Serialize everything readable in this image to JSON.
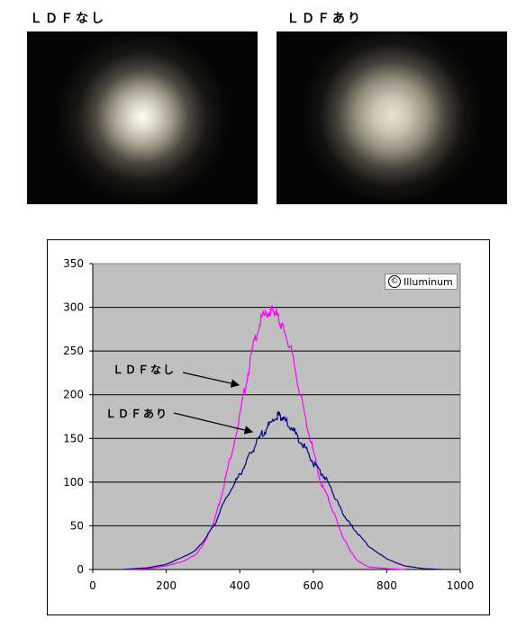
{
  "photos": [
    {
      "title": "ＬＤＦなし"
    },
    {
      "title": "ＬＤＦあり"
    }
  ],
  "copyright": {
    "symbol": "©",
    "text": "Illuminum"
  },
  "chart_data": {
    "type": "line",
    "title": "",
    "xlabel": "",
    "ylabel": "",
    "xlim": [
      0,
      1000
    ],
    "ylim": [
      0,
      350
    ],
    "x_ticks": [
      0,
      200,
      400,
      600,
      800,
      1000
    ],
    "y_ticks": [
      0,
      50,
      100,
      150,
      200,
      250,
      300,
      350
    ],
    "grid": "horizontal",
    "plot_background": "#c0c0c0",
    "series": [
      {
        "name": "ＬＤＦなし",
        "color": "#ff00ff",
        "x": [
          80,
          150,
          200,
          250,
          280,
          300,
          330,
          350,
          370,
          400,
          420,
          440,
          460,
          480,
          490,
          500,
          510,
          520,
          540,
          560,
          580,
          600,
          620,
          640,
          660,
          680,
          700,
          720,
          750,
          800,
          850
        ],
        "y": [
          0,
          1,
          4,
          10,
          17,
          28,
          55,
          85,
          120,
          175,
          220,
          262,
          288,
          295,
          297,
          293,
          282,
          275,
          250,
          210,
          170,
          135,
          100,
          82,
          60,
          38,
          22,
          10,
          3,
          1,
          0
        ]
      },
      {
        "name": "ＬＤＦあり",
        "color": "#000080",
        "x": [
          80,
          150,
          200,
          250,
          280,
          300,
          330,
          350,
          380,
          400,
          420,
          440,
          460,
          480,
          500,
          510,
          520,
          540,
          560,
          580,
          600,
          620,
          640,
          660,
          680,
          700,
          720,
          750,
          800,
          850,
          900,
          950
        ],
        "y": [
          0,
          2,
          6,
          15,
          22,
          32,
          50,
          70,
          95,
          108,
          125,
          140,
          155,
          165,
          175,
          176,
          172,
          162,
          150,
          138,
          122,
          112,
          100,
          82,
          65,
          52,
          42,
          27,
          12,
          4,
          1,
          0
        ]
      }
    ],
    "annotations": [
      {
        "text": "ＬＤＦなし",
        "target_series": 0
      },
      {
        "text": "ＬＤＦあり",
        "target_series": 1
      }
    ]
  }
}
